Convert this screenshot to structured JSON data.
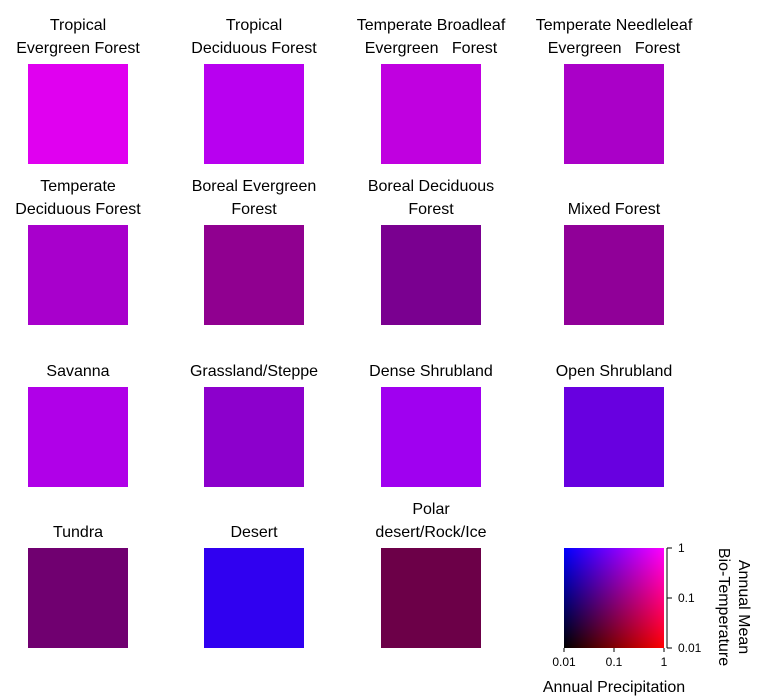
{
  "tiles": [
    {
      "label": [
        "Tropical",
        "Evergreen Forest"
      ],
      "color": "#e000f0"
    },
    {
      "label": [
        "Tropical",
        "Deciduous Forest"
      ],
      "color": "#b800f0"
    },
    {
      "label": [
        "Temperate Broadleaf",
        "Evergreen   Forest"
      ],
      "color": "#c000e0"
    },
    {
      "label": [
        "Temperate Needleleaf",
        "Evergreen   Forest"
      ],
      "color": "#aa00c8"
    },
    {
      "label": [
        "Temperate",
        "Deciduous Forest"
      ],
      "color": "#a800cc"
    },
    {
      "label": [
        "Boreal Evergreen",
        "Forest"
      ],
      "color": "#900090"
    },
    {
      "label": [
        "Boreal Deciduous",
        "Forest"
      ],
      "color": "#7a0090"
    },
    {
      "label": [
        "Mixed Forest"
      ],
      "color": "#900098"
    },
    {
      "label": [
        "Savanna"
      ],
      "color": "#b000e8"
    },
    {
      "label": [
        "Grassland/Steppe"
      ],
      "color": "#8c00cc"
    },
    {
      "label": [
        "Dense Shrubland"
      ],
      "color": "#a000f0"
    },
    {
      "label": [
        "Open Shrubland"
      ],
      "color": "#6800e0"
    },
    {
      "label": [
        "Tundra"
      ],
      "color": "#700070"
    },
    {
      "label": [
        "Desert"
      ],
      "color": "#3000f0"
    },
    {
      "label": [
        "Polar",
        "desert/Rock/Ice"
      ],
      "color": "#6c0048"
    }
  ],
  "legend": {
    "xlabel": "Annual Precipitation",
    "ylabel": [
      "Annual Mean",
      "Bio-Temperature"
    ],
    "log": true,
    "xlim": [
      0.01,
      1
    ],
    "ylim": [
      0.01,
      1
    ],
    "xticks": [
      0.01,
      0.1,
      1
    ],
    "yticks": [
      0.01,
      0.1,
      1
    ]
  }
}
